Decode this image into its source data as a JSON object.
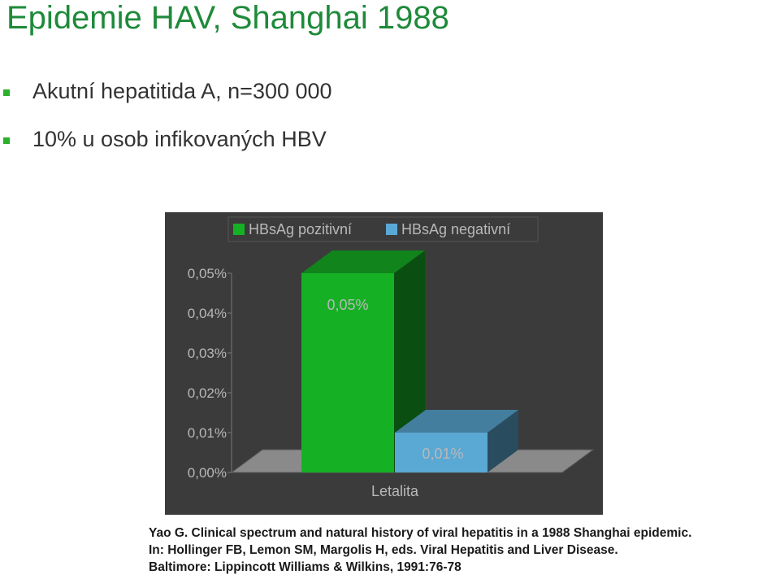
{
  "title": "Epidemie HAV, Shanghai 1988",
  "bullets": [
    "Akutní hepatitida A, n=300 000",
    "10% u osob infikovaných HBV"
  ],
  "colors": {
    "title": "#1e8a3a",
    "bullet_marker": "#2bb02b",
    "chart_background": "#3b3b3b",
    "positive_series": "#16b025",
    "negative_series": "#5aa8d4",
    "floor": "#8a8a8a"
  },
  "chart_data": {
    "type": "bar",
    "style": "3d-clustered",
    "categories": [
      "Letalita"
    ],
    "series": [
      {
        "name": "HBsAg pozitivní",
        "values": [
          0.05
        ],
        "label": "0,05%"
      },
      {
        "name": "HBsAg negativní",
        "values": [
          0.01
        ],
        "label": "0,01%"
      }
    ],
    "y_unit": "%",
    "ylim": [
      0,
      0.05
    ],
    "yticks": [
      "0,00%",
      "0,01%",
      "0,02%",
      "0,03%",
      "0,04%",
      "0,05%"
    ],
    "legend_position": "top",
    "grid": false
  },
  "citation": [
    "Yao G. Clinical spectrum and natural history of viral hepatitis in a 1988 Shanghai epidemic.",
    "In: Hollinger FB, Lemon SM, Margolis H, eds. Viral Hepatitis and Liver Disease.",
    "Baltimore: Lippincott Williams & Wilkins, 1991:76-78"
  ]
}
